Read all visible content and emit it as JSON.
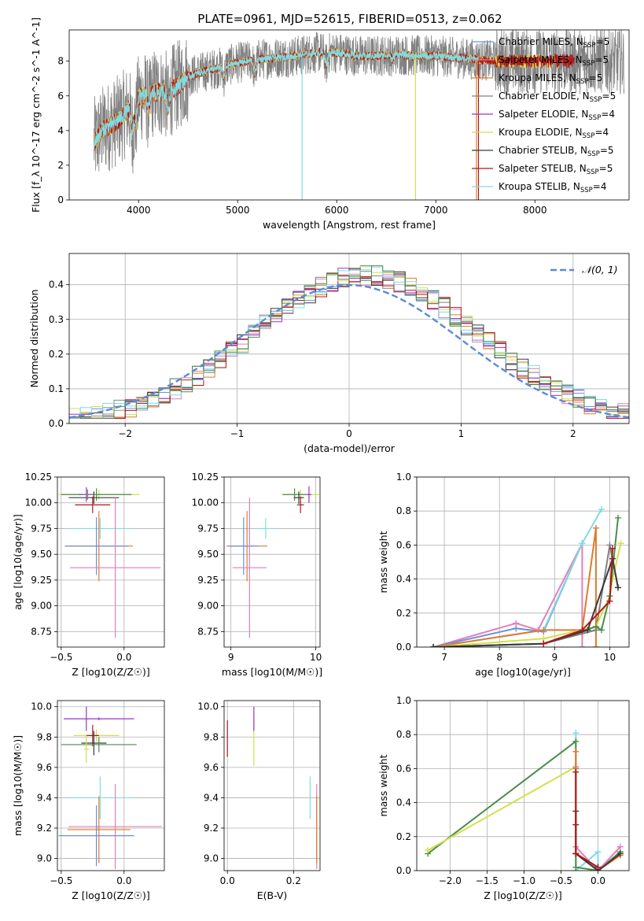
{
  "figure": {
    "title": "PLATE=0961, MJD=52615, FIBERID=0513, z=0.062"
  },
  "colors": {
    "Chabrier MILES": "#6a8fe0",
    "Salpeter MILES": "#e37fb8",
    "Kroupa MILES": "#e07a2a",
    "Chabrier ELODIE": "#808080",
    "Salpeter ELODIE": "#9a35c8",
    "Kroupa ELODIE": "#d3e04a",
    "Chabrier STELIB": "#3a3a3a",
    "Salpeter STELIB": "#b01818",
    "Kroupa STELIB": "#7fdce0",
    "normal": "#5a8ad8",
    "extra_green": "#4c8c4c"
  },
  "chart_data": [
    {
      "id": "spectrum",
      "type": "line",
      "title": "PLATE=0961, MJD=52615, FIBERID=0513, z=0.062",
      "xlabel": "wavelength [Angstrom, rest frame]",
      "ylabel": "Flux [f_λ 10^-17 erg cm^-2 s^-1 A^-1]",
      "xlim": [
        3300,
        8950
      ],
      "ylim": [
        0,
        9.8
      ],
      "xticks": [
        4000,
        5000,
        6000,
        7000,
        8000
      ],
      "yticks": [
        0,
        2,
        4,
        6,
        8
      ],
      "grid": false,
      "legend_position": "top-right",
      "legend": [
        {
          "label": "Chabrier MILES, N",
          "sub": "SSP",
          "tail": "=5",
          "color_key": "Chabrier MILES"
        },
        {
          "label": "Salpeter MILES, N",
          "sub": "SSP",
          "tail": "=5",
          "color_key": "Salpeter MILES"
        },
        {
          "label": "Kroupa MILES, N",
          "sub": "SSP",
          "tail": "=5",
          "color_key": "Kroupa MILES"
        },
        {
          "label": "Chabrier ELODIE, N",
          "sub": "SSP",
          "tail": "=5",
          "color_key": "Chabrier ELODIE"
        },
        {
          "label": "Salpeter ELODIE, N",
          "sub": "SSP",
          "tail": "=4",
          "color_key": "Salpeter ELODIE"
        },
        {
          "label": "Kroupa ELODIE, N",
          "sub": "SSP",
          "tail": "=4",
          "color_key": "Kroupa ELODIE"
        },
        {
          "label": "Chabrier STELIB, N",
          "sub": "SSP",
          "tail": "=5",
          "color_key": "Chabrier STELIB"
        },
        {
          "label": "Salpeter STELIB, N",
          "sub": "SSP",
          "tail": "=5",
          "color_key": "Salpeter STELIB"
        },
        {
          "label": "Kroupa STELIB, N",
          "sub": "SSP",
          "tail": "=4",
          "color_key": "Kroupa STELIB"
        }
      ],
      "continuum": {
        "x": [
          3550,
          3650,
          3750,
          3850,
          3950,
          4000,
          4100,
          4200,
          4300,
          4400,
          4500,
          4600,
          4800,
          5000,
          5200,
          5400,
          5600,
          5800,
          6000,
          6200,
          6400,
          6600,
          6800,
          7000,
          7200,
          7400,
          7600
        ],
        "y": [
          3.3,
          4.1,
          4.4,
          4.9,
          5.6,
          5.9,
          6.1,
          6.2,
          6.2,
          6.6,
          7.1,
          7.3,
          7.6,
          7.9,
          8.1,
          8.2,
          8.3,
          8.5,
          8.5,
          8.3,
          8.3,
          8.4,
          8.3,
          8.3,
          8.2,
          8.1,
          8.0
        ]
      },
      "absorption_lines": [
        {
          "x": 3934,
          "depth": 1.6
        },
        {
          "x": 3969,
          "depth": 1.3
        },
        {
          "x": 4102,
          "depth": 0.8
        },
        {
          "x": 4300,
          "depth": 0.9
        },
        {
          "x": 4861,
          "depth": 0.6
        },
        {
          "x": 5175,
          "depth": 0.8
        },
        {
          "x": 5893,
          "depth": 0.7
        },
        {
          "x": 6563,
          "depth": 0.3
        }
      ],
      "spikes": [
        {
          "x": 5650,
          "to": 0,
          "color_key": "Kroupa STELIB"
        },
        {
          "x": 6795,
          "to": 0,
          "color_key": "Kroupa ELODIE"
        },
        {
          "x": 7410,
          "to": 0,
          "color_key": "Kroupa MILES"
        },
        {
          "x": 7430,
          "to": 0,
          "color_key": "Salpeter STELIB"
        }
      ],
      "data_range": {
        "ELODIE": [
          3550,
          8250
        ],
        "MILES": [
          3550,
          7430
        ],
        "STELIB": [
          3550,
          8400
        ],
        "data": [
          3550,
          8900
        ]
      }
    },
    {
      "id": "residuals",
      "type": "histogram",
      "xlabel": "(data-model)/error",
      "ylabel": "Normed distribution",
      "xlim": [
        -2.5,
        2.5
      ],
      "ylim": [
        0,
        0.49
      ],
      "xticks": [
        -2,
        -1,
        0,
        1,
        2
      ],
      "yticks": [
        0.0,
        0.1,
        0.2,
        0.3,
        0.4
      ],
      "grid": true,
      "bin_width": 0.1,
      "legend_position": "top-right",
      "legend_label": "𝒩(0, 1)",
      "normal": {
        "mean": 0,
        "sigma": 1
      }
    },
    {
      "id": "age_vs_Z",
      "type": "errorbar",
      "xlabel": "Z [log10(Z/Z☉)]",
      "ylabel": "age  [log10(age/yr)]",
      "xlim": [
        -0.53,
        0.32
      ],
      "ylim": [
        8.6,
        10.25
      ],
      "xticks": [
        -0.5,
        0.0
      ],
      "yticks": [
        8.75,
        9.0,
        9.25,
        9.5,
        9.75,
        10.0,
        10.25
      ],
      "grid": true,
      "points": [
        {
          "x": -0.2,
          "y": 10.08,
          "xerr": 0.32,
          "yerr": 0.05,
          "color_key": "Kroupa ELODIE"
        },
        {
          "x": -0.22,
          "y": 10.08,
          "xerr": 0.28,
          "yerr": 0.06,
          "color_key": "extra_green"
        },
        {
          "x": -0.24,
          "y": 10.05,
          "xerr": 0.2,
          "yerr": 0.06,
          "color_key": "Chabrier STELIB"
        },
        {
          "x": -0.25,
          "y": 9.98,
          "xerr": 0.14,
          "yerr": 0.08,
          "color_key": "Salpeter STELIB"
        },
        {
          "x": -0.19,
          "y": 9.75,
          "xerr": 0.26,
          "yerr": 0.1,
          "color_key": "Kroupa STELIB"
        },
        {
          "x": -0.2,
          "y": 9.58,
          "xerr": 0.27,
          "yerr": 0.34,
          "color_key": "Kroupa MILES"
        },
        {
          "x": -0.22,
          "y": 9.58,
          "xerr": 0.25,
          "yerr": 0.28,
          "color_key": "Chabrier MILES"
        },
        {
          "x": -0.07,
          "y": 9.37,
          "xerr": 0.36,
          "yerr": 0.68,
          "color_key": "Salpeter MILES"
        },
        {
          "x": -0.3,
          "y": 10.08,
          "xerr": 0.06,
          "yerr": 0.07,
          "color_key": "Salpeter ELODIE"
        },
        {
          "x": -0.29,
          "y": 10.08,
          "xerr": 0.05,
          "yerr": 0.05,
          "color_key": "Chabrier ELODIE"
        }
      ]
    },
    {
      "id": "age_vs_mass",
      "type": "errorbar",
      "xlabel": "mass [log10(M/M☉)]",
      "ylabel": "",
      "xlim": [
        8.92,
        10.05
      ],
      "ylim": [
        8.6,
        10.25
      ],
      "xticks": [
        9,
        10
      ],
      "yticks": [
        8.75,
        9.0,
        9.25,
        9.5,
        9.75,
        10.0,
        10.25
      ],
      "grid": true,
      "points": [
        {
          "x": 9.82,
          "y": 10.08,
          "xerr": 0.22,
          "yerr": 0.05,
          "color_key": "Kroupa ELODIE"
        },
        {
          "x": 9.75,
          "y": 10.08,
          "xerr": 0.14,
          "yerr": 0.06,
          "color_key": "extra_green"
        },
        {
          "x": 9.8,
          "y": 10.05,
          "xerr": 0.06,
          "yerr": 0.06,
          "color_key": "Chabrier STELIB"
        },
        {
          "x": 9.82,
          "y": 9.98,
          "xerr": 0.04,
          "yerr": 0.08,
          "color_key": "Salpeter STELIB"
        },
        {
          "x": 9.92,
          "y": 10.08,
          "xerr": 0.03,
          "yerr": 0.08,
          "color_key": "Salpeter ELODIE"
        },
        {
          "x": 9.41,
          "y": 9.75,
          "xerr": 0.14,
          "yerr": 0.1,
          "color_key": "Kroupa STELIB"
        },
        {
          "x": 9.19,
          "y": 9.58,
          "xerr": 0.24,
          "yerr": 0.34,
          "color_key": "Kroupa MILES"
        },
        {
          "x": 9.15,
          "y": 9.58,
          "xerr": 0.18,
          "yerr": 0.28,
          "color_key": "Chabrier MILES"
        },
        {
          "x": 9.22,
          "y": 9.37,
          "xerr": 0.2,
          "yerr": 0.68,
          "color_key": "Salpeter MILES"
        }
      ]
    },
    {
      "id": "weight_vs_age",
      "type": "line",
      "xlabel": "age  [log10(age/yr)]",
      "ylabel": "mass weight",
      "xlim": [
        6.5,
        10.35
      ],
      "ylim": [
        0,
        1
      ],
      "xticks": [
        7,
        8,
        9,
        10
      ],
      "yticks": [
        0.0,
        0.2,
        0.4,
        0.6,
        0.8,
        1.0
      ],
      "grid": true,
      "series": [
        {
          "color_key": "Salpeter MILES",
          "x": [
            6.8,
            8.3,
            8.7,
            9.5,
            9.5
          ],
          "y": [
            0.0,
            0.14,
            0.1,
            0.61,
            0.0
          ]
        },
        {
          "color_key": "Chabrier MILES",
          "x": [
            6.8,
            8.3,
            8.8,
            9.5
          ],
          "y": [
            0.0,
            0.11,
            0.09,
            0.61
          ]
        },
        {
          "color_key": "Kroupa STELIB",
          "x": [
            6.8,
            8.8,
            9.5,
            9.85
          ],
          "y": [
            0.0,
            0.1,
            0.61,
            0.81
          ]
        },
        {
          "color_key": "Kroupa MILES",
          "x": [
            6.8,
            8.8,
            9.5,
            9.75,
            9.75
          ],
          "y": [
            0.0,
            0.1,
            0.1,
            0.7,
            0.0
          ]
        },
        {
          "color_key": "Chabrier ELODIE",
          "x": [
            6.8,
            8.8,
            9.75,
            10.0,
            10.15
          ],
          "y": [
            0.0,
            0.02,
            0.1,
            0.6,
            0.35
          ]
        },
        {
          "color_key": "Kroupa ELODIE",
          "x": [
            6.8,
            8.8,
            9.75,
            10.0,
            10.05,
            10.2
          ],
          "y": [
            0.0,
            0.05,
            0.12,
            0.3,
            0.4,
            0.61
          ]
        },
        {
          "color_key": "extra_green",
          "x": [
            6.8,
            8.8,
            9.75,
            9.85,
            10.0,
            10.15
          ],
          "y": [
            0.0,
            0.02,
            0.12,
            0.1,
            0.3,
            0.76
          ]
        },
        {
          "color_key": "Chabrier STELIB",
          "x": [
            6.8,
            8.8,
            9.6,
            10.05,
            10.15
          ],
          "y": [
            0.0,
            0.02,
            0.1,
            0.52,
            0.35
          ]
        },
        {
          "color_key": "Salpeter STELIB",
          "x": [
            8.8,
            9.5,
            10.0,
            10.05
          ],
          "y": [
            0.02,
            0.1,
            0.27,
            0.58
          ]
        }
      ]
    },
    {
      "id": "mass_vs_Z",
      "type": "errorbar",
      "xlabel": "Z [log10(Z/Z☉)]",
      "ylabel": "mass [log10(M/M☉)]",
      "xlim": [
        -0.53,
        0.32
      ],
      "ylim": [
        8.92,
        10.04
      ],
      "xticks": [
        -0.5,
        0.0
      ],
      "yticks": [
        9.0,
        9.2,
        9.4,
        9.6,
        9.8,
        10.0
      ],
      "grid": true,
      "points": [
        {
          "x": -0.2,
          "y": 9.92,
          "xerr": 0.28,
          "yerr": 0.01,
          "color_key": "Salpeter ELODIE"
        },
        {
          "x": -0.3,
          "y": 9.92,
          "xerr": 0.01,
          "yerr": 0.08,
          "color_key": "Salpeter ELODIE"
        },
        {
          "x": -0.22,
          "y": 9.81,
          "xerr": 0.18,
          "yerr": 0.04,
          "color_key": "Kroupa ELODIE"
        },
        {
          "x": -0.25,
          "y": 9.81,
          "xerr": 0.05,
          "yerr": 0.07,
          "color_key": "Salpeter STELIB"
        },
        {
          "x": -0.24,
          "y": 9.76,
          "xerr": 0.1,
          "yerr": 0.08,
          "color_key": "Chabrier STELIB"
        },
        {
          "x": -0.2,
          "y": 9.75,
          "xerr": 0.3,
          "yerr": 0.05,
          "color_key": "extra_green"
        },
        {
          "x": -0.3,
          "y": 9.72,
          "xerr": 0.02,
          "yerr": 0.09,
          "color_key": "Kroupa ELODIE"
        },
        {
          "x": -0.19,
          "y": 9.4,
          "xerr": 0.27,
          "yerr": 0.14,
          "color_key": "Kroupa STELIB"
        },
        {
          "x": -0.07,
          "y": 9.21,
          "xerr": 0.37,
          "yerr": 0.28,
          "color_key": "Salpeter MILES"
        },
        {
          "x": -0.2,
          "y": 9.19,
          "xerr": 0.25,
          "yerr": 0.22,
          "color_key": "Kroupa MILES"
        },
        {
          "x": -0.22,
          "y": 9.15,
          "xerr": 0.3,
          "yerr": 0.2,
          "color_key": "Chabrier MILES"
        }
      ]
    },
    {
      "id": "mass_vs_ebv",
      "type": "errorbar",
      "xlabel": "E(B-V)",
      "ylabel": "",
      "xlim": [
        -0.01,
        0.28
      ],
      "ylim": [
        8.92,
        10.04
      ],
      "xticks": [
        0.0,
        0.2
      ],
      "yticks": [
        9.0,
        9.2,
        9.4,
        9.6,
        9.8,
        10.0
      ],
      "grid": true,
      "points": [
        {
          "x": 0.0,
          "y": 9.79,
          "xerr": 0.0,
          "yerr": 0.12,
          "color_key": "Salpeter STELIB"
        },
        {
          "x": 0.08,
          "y": 9.78,
          "xerr": 0.0,
          "yerr": 0.17,
          "color_key": "Kroupa ELODIE"
        },
        {
          "x": 0.08,
          "y": 9.92,
          "xerr": 0.0,
          "yerr": 0.08,
          "color_key": "Salpeter ELODIE"
        },
        {
          "x": 0.25,
          "y": 9.4,
          "xerr": 0.0,
          "yerr": 0.14,
          "color_key": "Kroupa STELIB"
        },
        {
          "x": 0.27,
          "y": 9.21,
          "xerr": 0.0,
          "yerr": 0.28,
          "color_key": "Salpeter MILES"
        },
        {
          "x": 0.27,
          "y": 9.19,
          "xerr": 0.0,
          "yerr": 0.22,
          "color_key": "Kroupa MILES"
        }
      ]
    },
    {
      "id": "weight_vs_Z",
      "type": "line",
      "xlabel": "Z [log10(Z/Z☉)]",
      "ylabel": "mass weight",
      "xlim": [
        -2.45,
        0.42
      ],
      "ylim": [
        0,
        1
      ],
      "xticks": [
        -2.0,
        -1.5,
        -1.0,
        -0.5,
        0.0
      ],
      "yticks": [
        0.0,
        0.2,
        0.4,
        0.6,
        0.8,
        1.0
      ],
      "grid": true,
      "series": [
        {
          "color_key": "Kroupa STELIB",
          "x": [
            -0.3,
            -0.3,
            0.0,
            0.0
          ],
          "y": [
            0.81,
            0.0,
            0.11,
            0.0
          ]
        },
        {
          "color_key": "extra_green",
          "x": [
            -2.3,
            -0.3,
            -0.3,
            0.0,
            0.3,
            0.3
          ],
          "y": [
            0.1,
            0.76,
            0.02,
            0.0,
            0.11,
            0.1
          ]
        },
        {
          "color_key": "Kroupa ELODIE",
          "x": [
            -2.3,
            -0.3,
            -0.3,
            0.0,
            0.3
          ],
          "y": [
            0.12,
            0.61,
            0.1,
            0.0,
            0.1
          ]
        },
        {
          "color_key": "Chabrier ELODIE",
          "x": [
            -0.3,
            -0.3,
            0.0
          ],
          "y": [
            0.6,
            0.1,
            0.02
          ]
        },
        {
          "color_key": "Salpeter MILES",
          "x": [
            -0.3,
            -0.3,
            0.0,
            0.3
          ],
          "y": [
            0.61,
            0.14,
            0.0,
            0.14
          ]
        },
        {
          "color_key": "Kroupa MILES",
          "x": [
            -0.3,
            -0.3,
            0.0,
            0.3
          ],
          "y": [
            0.7,
            0.1,
            0.0,
            0.09
          ]
        },
        {
          "color_key": "Chabrier STELIB",
          "x": [
            -0.3,
            -0.3,
            0.0,
            0.3
          ],
          "y": [
            0.35,
            0.1,
            0.0,
            0.1
          ]
        },
        {
          "color_key": "Salpeter STELIB",
          "x": [
            -0.3,
            -0.3,
            -0.3,
            0.0
          ],
          "y": [
            0.58,
            0.27,
            0.1,
            0.02
          ]
        }
      ]
    }
  ]
}
